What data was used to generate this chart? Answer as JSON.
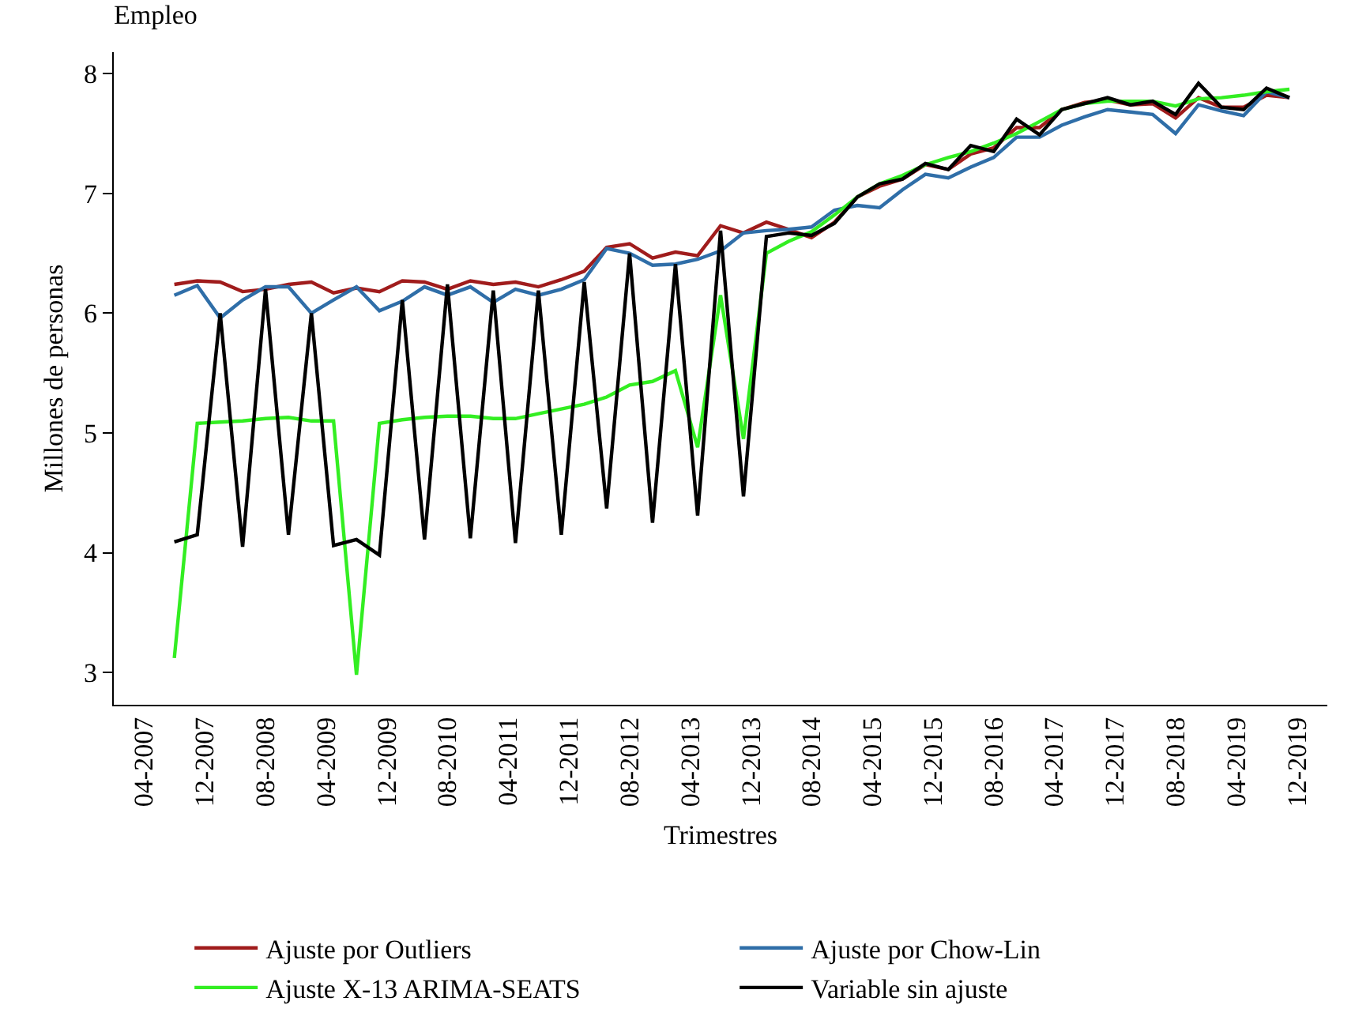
{
  "chart_data": {
    "type": "line",
    "title": "Empleo",
    "xlabel": "Trimestres",
    "ylabel": "Millones de personas",
    "x": [
      "2007-08",
      "2007-11",
      "2008-02",
      "2008-05",
      "2008-08",
      "2008-11",
      "2009-02",
      "2009-05",
      "2009-08",
      "2009-11",
      "2010-02",
      "2010-05",
      "2010-08",
      "2010-11",
      "2011-02",
      "2011-05",
      "2011-08",
      "2011-11",
      "2012-02",
      "2012-05",
      "2012-08",
      "2012-11",
      "2013-02",
      "2013-05",
      "2013-08",
      "2013-11",
      "2014-02",
      "2014-05",
      "2014-08",
      "2014-11",
      "2015-02",
      "2015-05",
      "2015-08",
      "2015-11",
      "2016-02",
      "2016-05",
      "2016-08",
      "2016-11",
      "2017-02",
      "2017-05",
      "2017-08",
      "2017-11",
      "2018-02",
      "2018-05",
      "2018-08",
      "2018-11",
      "2019-02",
      "2019-05",
      "2019-08",
      "2019-11"
    ],
    "series": [
      {
        "name": "Ajuste por Outliers",
        "color": "#a01c1c",
        "values": [
          6.24,
          6.27,
          6.26,
          6.18,
          6.2,
          6.24,
          6.26,
          6.17,
          6.21,
          6.18,
          6.27,
          6.26,
          6.2,
          6.27,
          6.24,
          6.26,
          6.22,
          6.28,
          6.35,
          6.55,
          6.58,
          6.46,
          6.51,
          6.48,
          6.73,
          6.67,
          6.76,
          6.7,
          6.63,
          6.76,
          6.97,
          7.06,
          7.12,
          7.24,
          7.2,
          7.33,
          7.38,
          7.55,
          7.55,
          7.7,
          7.76,
          7.78,
          7.74,
          7.75,
          7.63,
          7.8,
          7.72,
          7.72,
          7.82,
          7.8
        ]
      },
      {
        "name": "Ajuste por Chow-Lin",
        "color": "#2f6ea8",
        "values": [
          6.15,
          6.23,
          5.96,
          6.11,
          6.22,
          6.22,
          6.0,
          6.11,
          6.22,
          6.02,
          6.1,
          6.22,
          6.15,
          6.22,
          6.09,
          6.2,
          6.15,
          6.2,
          6.28,
          6.54,
          6.5,
          6.4,
          6.41,
          6.45,
          6.52,
          6.67,
          6.69,
          6.7,
          6.72,
          6.86,
          6.9,
          6.88,
          7.03,
          7.16,
          7.13,
          7.22,
          7.3,
          7.47,
          7.47,
          7.57,
          7.64,
          7.7,
          7.68,
          7.66,
          7.5,
          7.74,
          7.69,
          7.65,
          7.85,
          7.8
        ]
      },
      {
        "name": "Ajuste X-13 ARIMA-SEATS",
        "color": "#33ee22",
        "values": [
          3.12,
          5.08,
          5.09,
          5.1,
          5.12,
          5.13,
          5.1,
          5.1,
          2.98,
          5.08,
          5.11,
          5.13,
          5.14,
          5.14,
          5.12,
          5.12,
          5.16,
          5.2,
          5.24,
          5.3,
          5.4,
          5.43,
          5.52,
          4.88,
          6.15,
          4.95,
          6.5,
          6.6,
          6.68,
          6.82,
          6.97,
          7.08,
          7.15,
          7.24,
          7.3,
          7.35,
          7.42,
          7.5,
          7.6,
          7.7,
          7.75,
          7.77,
          7.77,
          7.77,
          7.73,
          7.79,
          7.8,
          7.82,
          7.85,
          7.87
        ]
      },
      {
        "name": "Variable sin ajuste",
        "color": "#000000",
        "values": [
          4.09,
          4.15,
          6.0,
          4.05,
          6.2,
          4.15,
          6.0,
          4.06,
          4.11,
          3.98,
          6.11,
          4.11,
          6.24,
          4.12,
          6.19,
          4.08,
          6.19,
          4.15,
          6.26,
          4.37,
          6.5,
          4.25,
          6.41,
          4.31,
          6.69,
          4.47,
          6.64,
          6.67,
          6.65,
          6.75,
          6.97,
          7.08,
          7.12,
          7.25,
          7.2,
          7.4,
          7.35,
          7.62,
          7.49,
          7.7,
          7.75,
          7.8,
          7.74,
          7.77,
          7.66,
          7.92,
          7.72,
          7.7,
          7.88,
          7.8
        ]
      }
    ],
    "xlim": [
      "2006-12",
      "2020-04"
    ],
    "xticks": [
      {
        "value": "2007-04",
        "label": "04-2007"
      },
      {
        "value": "2007-12",
        "label": "12-2007"
      },
      {
        "value": "2008-08",
        "label": "08-2008"
      },
      {
        "value": "2009-04",
        "label": "04-2009"
      },
      {
        "value": "2009-12",
        "label": "12-2009"
      },
      {
        "value": "2010-08",
        "label": "08-2010"
      },
      {
        "value": "2011-04",
        "label": "04-2011"
      },
      {
        "value": "2011-12",
        "label": "12-2011"
      },
      {
        "value": "2012-08",
        "label": "08-2012"
      },
      {
        "value": "2013-04",
        "label": "04-2013"
      },
      {
        "value": "2013-12",
        "label": "12-2013"
      },
      {
        "value": "2014-08",
        "label": "08-2014"
      },
      {
        "value": "2015-04",
        "label": "04-2015"
      },
      {
        "value": "2015-12",
        "label": "12-2015"
      },
      {
        "value": "2016-08",
        "label": "08-2016"
      },
      {
        "value": "2017-04",
        "label": "04-2017"
      },
      {
        "value": "2017-12",
        "label": "12-2017"
      },
      {
        "value": "2018-08",
        "label": "08-2018"
      },
      {
        "value": "2019-04",
        "label": "04-2019"
      },
      {
        "value": "2019-12",
        "label": "12-2019"
      }
    ],
    "ylim": [
      2.73,
      8.18
    ],
    "yticks": [
      3,
      4,
      5,
      6,
      7,
      8
    ],
    "legend": "bottom"
  }
}
